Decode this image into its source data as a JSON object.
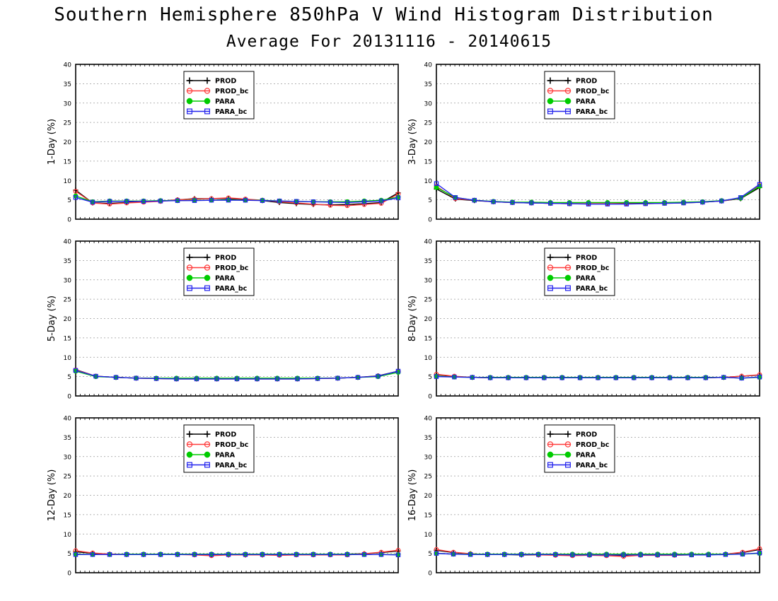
{
  "title": "Southern Hemisphere 850hPa V Wind Histogram Distribution",
  "subtitle": "Average For 20131116 - 20140615",
  "colors": {
    "PROD": "#000000",
    "PROD_bc": "#ff3b3b",
    "PARA": "#00cc00",
    "PARA_bc": "#2222ee",
    "grid": "#9a9a9a"
  },
  "legend": [
    "PROD",
    "PROD_bc",
    "PARA",
    "PARA_bc"
  ],
  "chart_data": [
    {
      "type": "line",
      "ylabel": "1-Day (%)",
      "ylim": [
        0,
        40
      ],
      "yticks": [
        0,
        5,
        10,
        15,
        20,
        25,
        30,
        35,
        40
      ],
      "grid": true,
      "legend_position": "top-center",
      "series": [
        {
          "name": "PROD",
          "values": [
            7.5,
            4.2,
            4.1,
            4.3,
            4.5,
            4.7,
            5.0,
            5.3,
            5.3,
            5.3,
            5.1,
            4.8,
            4.3,
            4.0,
            3.8,
            3.7,
            3.8,
            4.0,
            4.3,
            6.8
          ]
        },
        {
          "name": "PROD_bc",
          "values": [
            7.2,
            4.2,
            3.9,
            4.2,
            4.4,
            4.6,
            5.0,
            5.2,
            5.3,
            5.5,
            5.2,
            4.9,
            4.5,
            4.2,
            3.9,
            3.6,
            3.5,
            3.8,
            4.1,
            6.5
          ]
        },
        {
          "name": "PARA",
          "values": [
            6.0,
            4.5,
            4.7,
            4.7,
            4.7,
            4.8,
            4.8,
            4.9,
            4.9,
            5.0,
            4.9,
            4.9,
            4.7,
            4.6,
            4.5,
            4.5,
            4.5,
            4.7,
            4.9,
            5.7
          ]
        },
        {
          "name": "PARA_bc",
          "values": [
            5.6,
            4.4,
            4.6,
            4.6,
            4.6,
            4.7,
            4.8,
            4.8,
            4.9,
            4.9,
            4.9,
            4.8,
            4.7,
            4.6,
            4.5,
            4.4,
            4.3,
            4.5,
            4.7,
            5.5
          ]
        }
      ]
    },
    {
      "type": "line",
      "ylabel": "3-Day (%)",
      "ylim": [
        0,
        40
      ],
      "yticks": [
        0,
        5,
        10,
        15,
        20,
        25,
        30,
        35,
        40
      ],
      "grid": true,
      "legend_position": "top-center",
      "series": [
        {
          "name": "PROD",
          "values": [
            7.8,
            5.2,
            4.8,
            4.5,
            4.3,
            4.2,
            4.1,
            4.0,
            4.0,
            4.0,
            4.1,
            4.1,
            4.2,
            4.3,
            4.4,
            4.7,
            5.3,
            8.2
          ]
        },
        {
          "name": "PROD_bc",
          "values": [
            8.5,
            5.3,
            4.9,
            4.5,
            4.3,
            4.2,
            4.1,
            4.0,
            4.0,
            4.0,
            4.0,
            4.0,
            4.1,
            4.2,
            4.4,
            4.7,
            5.4,
            8.7
          ]
        },
        {
          "name": "PARA",
          "values": [
            8.2,
            5.6,
            4.9,
            4.6,
            4.4,
            4.4,
            4.3,
            4.3,
            4.3,
            4.3,
            4.3,
            4.3,
            4.3,
            4.4,
            4.5,
            4.8,
            5.4,
            8.5
          ]
        },
        {
          "name": "PARA_bc",
          "values": [
            9.2,
            5.6,
            4.9,
            4.5,
            4.3,
            4.2,
            4.1,
            4.0,
            3.9,
            3.9,
            3.9,
            4.0,
            4.1,
            4.2,
            4.4,
            4.7,
            5.6,
            9.0
          ]
        }
      ]
    },
    {
      "type": "line",
      "ylabel": "5-Day (%)",
      "ylim": [
        0,
        40
      ],
      "yticks": [
        0,
        5,
        10,
        15,
        20,
        25,
        30,
        35,
        40
      ],
      "grid": true,
      "legend_position": "top-center",
      "series": [
        {
          "name": "PROD",
          "values": [
            6.8,
            5.1,
            4.8,
            4.6,
            4.5,
            4.4,
            4.4,
            4.4,
            4.4,
            4.4,
            4.4,
            4.4,
            4.5,
            4.6,
            4.8,
            5.2,
            6.4
          ]
        },
        {
          "name": "PROD_bc",
          "values": [
            6.7,
            5.1,
            4.8,
            4.6,
            4.5,
            4.4,
            4.4,
            4.4,
            4.4,
            4.4,
            4.4,
            4.4,
            4.5,
            4.6,
            4.8,
            5.1,
            6.3
          ]
        },
        {
          "name": "PARA",
          "values": [
            6.4,
            5.0,
            4.8,
            4.6,
            4.6,
            4.6,
            4.6,
            4.6,
            4.6,
            4.6,
            4.6,
            4.6,
            4.6,
            4.6,
            4.8,
            5.0,
            6.1
          ]
        },
        {
          "name": "PARA_bc",
          "values": [
            6.6,
            5.1,
            4.8,
            4.6,
            4.5,
            4.4,
            4.4,
            4.4,
            4.4,
            4.4,
            4.4,
            4.4,
            4.5,
            4.6,
            4.8,
            5.1,
            6.4
          ]
        }
      ]
    },
    {
      "type": "line",
      "ylabel": "8-Day (%)",
      "ylim": [
        0,
        40
      ],
      "yticks": [
        0,
        5,
        10,
        15,
        20,
        25,
        30,
        35,
        40
      ],
      "grid": true,
      "legend_position": "top-center",
      "series": [
        {
          "name": "PROD",
          "values": [
            5.5,
            5.0,
            4.8,
            4.7,
            4.7,
            4.7,
            4.7,
            4.7,
            4.7,
            4.7,
            4.7,
            4.7,
            4.7,
            4.7,
            4.7,
            4.7,
            4.8,
            5.1,
            5.4
          ]
        },
        {
          "name": "PROD_bc",
          "values": [
            5.6,
            5.1,
            4.8,
            4.7,
            4.7,
            4.7,
            4.7,
            4.7,
            4.7,
            4.7,
            4.7,
            4.7,
            4.7,
            4.7,
            4.7,
            4.7,
            4.8,
            5.1,
            5.5
          ]
        },
        {
          "name": "PARA",
          "values": [
            5.1,
            4.9,
            4.8,
            4.8,
            4.8,
            4.8,
            4.8,
            4.8,
            4.8,
            4.8,
            4.8,
            4.8,
            4.8,
            4.8,
            4.8,
            4.8,
            4.8,
            4.6,
            4.8
          ]
        },
        {
          "name": "PARA_bc",
          "values": [
            5.0,
            4.9,
            4.8,
            4.7,
            4.7,
            4.7,
            4.7,
            4.7,
            4.7,
            4.7,
            4.7,
            4.7,
            4.7,
            4.7,
            4.7,
            4.7,
            4.8,
            4.6,
            4.9
          ]
        }
      ]
    },
    {
      "type": "line",
      "ylabel": "12-Day (%)",
      "ylim": [
        0,
        40
      ],
      "yticks": [
        0,
        5,
        10,
        15,
        20,
        25,
        30,
        35,
        40
      ],
      "grid": true,
      "legend_position": "top-center",
      "series": [
        {
          "name": "PROD",
          "values": [
            5.4,
            5.0,
            4.8,
            4.7,
            4.7,
            4.7,
            4.7,
            4.7,
            4.6,
            4.6,
            4.6,
            4.6,
            4.6,
            4.7,
            4.7,
            4.7,
            4.8,
            4.9,
            5.2,
            5.6
          ]
        },
        {
          "name": "PROD_bc",
          "values": [
            5.7,
            5.1,
            4.8,
            4.7,
            4.7,
            4.7,
            4.7,
            4.6,
            4.4,
            4.6,
            4.6,
            4.6,
            4.5,
            4.6,
            4.6,
            4.6,
            4.6,
            4.9,
            5.3,
            5.8
          ]
        },
        {
          "name": "PARA",
          "values": [
            4.8,
            4.7,
            4.7,
            4.8,
            4.8,
            4.8,
            4.8,
            4.8,
            4.8,
            4.8,
            4.8,
            4.8,
            4.8,
            4.8,
            4.8,
            4.8,
            4.8,
            4.7,
            4.7,
            4.7
          ]
        },
        {
          "name": "PARA_bc",
          "values": [
            4.7,
            4.7,
            4.7,
            4.7,
            4.7,
            4.7,
            4.7,
            4.7,
            4.7,
            4.7,
            4.7,
            4.7,
            4.7,
            4.7,
            4.7,
            4.7,
            4.7,
            4.7,
            4.7,
            4.6
          ]
        }
      ]
    },
    {
      "type": "line",
      "ylabel": "16-Day (%)",
      "ylim": [
        0,
        40
      ],
      "yticks": [
        0,
        5,
        10,
        15,
        20,
        25,
        30,
        35,
        40
      ],
      "grid": true,
      "legend_position": "top-center",
      "series": [
        {
          "name": "PROD",
          "values": [
            5.8,
            5.2,
            4.9,
            4.7,
            4.7,
            4.6,
            4.6,
            4.6,
            4.6,
            4.6,
            4.5,
            4.5,
            4.6,
            4.6,
            4.6,
            4.7,
            4.7,
            4.8,
            5.2,
            6.0
          ]
        },
        {
          "name": "PROD_bc",
          "values": [
            6.0,
            5.3,
            4.9,
            4.7,
            4.7,
            4.7,
            4.6,
            4.5,
            4.4,
            4.5,
            4.4,
            4.2,
            4.5,
            4.5,
            4.5,
            4.6,
            4.7,
            4.8,
            5.3,
            6.2
          ]
        },
        {
          "name": "PARA",
          "values": [
            5.0,
            4.8,
            4.8,
            4.8,
            4.8,
            4.8,
            4.8,
            4.8,
            4.8,
            4.8,
            4.8,
            4.8,
            4.8,
            4.8,
            4.8,
            4.8,
            4.8,
            4.8,
            4.8,
            5.0
          ]
        },
        {
          "name": "PARA_bc",
          "values": [
            5.0,
            4.8,
            4.7,
            4.7,
            4.7,
            4.7,
            4.7,
            4.7,
            4.6,
            4.6,
            4.6,
            4.6,
            4.6,
            4.6,
            4.6,
            4.6,
            4.6,
            4.7,
            4.8,
            5.1
          ]
        }
      ]
    }
  ]
}
